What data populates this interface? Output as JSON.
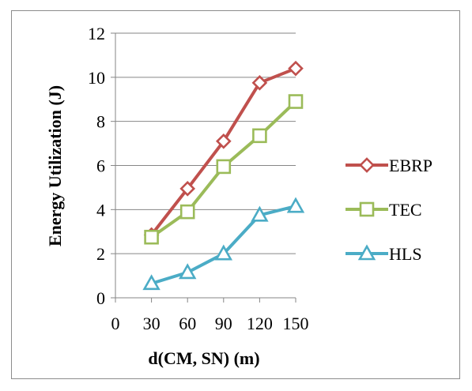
{
  "chart_data": {
    "type": "line",
    "xlabel": "d(CM, SN) (m)",
    "ylabel": "Energy Utilization (J)",
    "x": [
      30,
      60,
      90,
      120,
      150
    ],
    "x_ticks": [
      "0",
      "30",
      "60",
      "90",
      "120",
      "150"
    ],
    "y_ticks": [
      "0",
      "2",
      "4",
      "6",
      "8",
      "10",
      "12"
    ],
    "xlim": [
      0,
      150
    ],
    "ylim": [
      0,
      12
    ],
    "grid": "horizontal",
    "legend_position": "right",
    "series": [
      {
        "name": "EBRP",
        "values": [
          2.85,
          4.95,
          7.1,
          9.75,
          10.4
        ],
        "color": "#c0504d",
        "marker": "diamond"
      },
      {
        "name": "TEC",
        "values": [
          2.75,
          3.9,
          5.95,
          7.35,
          8.9
        ],
        "color": "#9bbb59",
        "marker": "square"
      },
      {
        "name": "HLS",
        "values": [
          0.65,
          1.15,
          2.0,
          3.75,
          4.15
        ],
        "color": "#4bacc6",
        "marker": "triangle"
      }
    ]
  }
}
